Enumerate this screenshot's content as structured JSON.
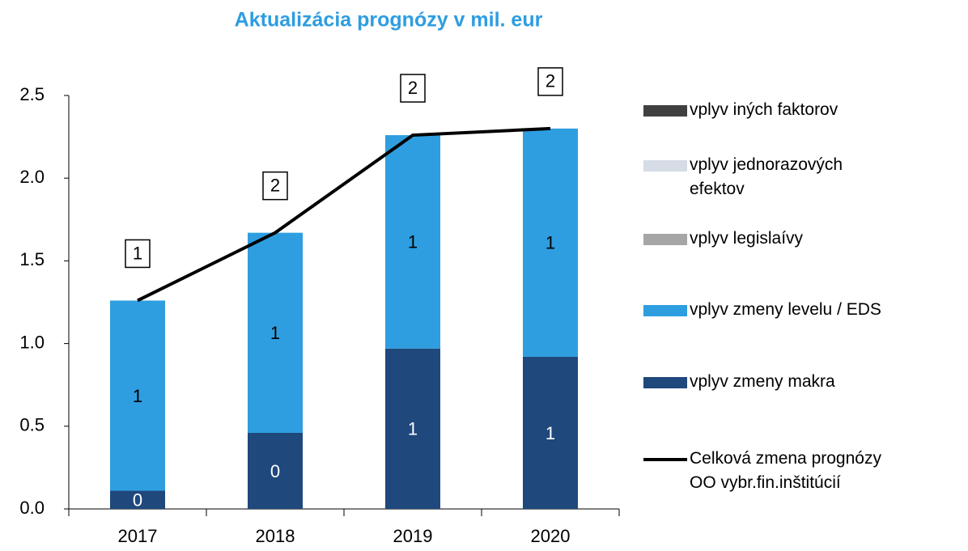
{
  "chart_data": {
    "type": "bar",
    "title": "Aktualizácia prognózy v mil. eur",
    "categories": [
      "2017",
      "2018",
      "2019",
      "2020"
    ],
    "series": [
      {
        "name": "vplyv iných faktorov",
        "color": "#404040",
        "values": [
          0,
          0,
          0,
          0
        ]
      },
      {
        "name": "vplyv jednorazových efektov",
        "color": "#d6dce5",
        "values": [
          0,
          0,
          0,
          0
        ]
      },
      {
        "name": "vplyv legislaívy",
        "color": "#a6a6a6",
        "values": [
          0,
          0,
          0,
          0
        ]
      },
      {
        "name": "vplyv zmeny levelu / EDS",
        "color": "#2e9ee0",
        "values": [
          1.15,
          1.21,
          1.29,
          1.38
        ],
        "value_labels": [
          "1",
          "1",
          "1",
          "1"
        ]
      },
      {
        "name": "vplyv zmeny makra",
        "color": "#1f487c",
        "values": [
          0.11,
          0.46,
          0.97,
          0.92
        ],
        "value_labels": [
          "0",
          "0",
          "1",
          "1"
        ]
      },
      {
        "name": "Celková zmena prognózy OO vybr.fin.inštitúcií",
        "type": "line",
        "color": "#000000",
        "values": [
          1.26,
          1.67,
          2.26,
          2.3
        ],
        "value_labels": [
          "1",
          "2",
          "2",
          "2"
        ]
      }
    ],
    "ylim": [
      0,
      2.5
    ],
    "yticks": [
      {
        "value": 0,
        "label": "0.0"
      },
      0.5,
      {
        "value": 1,
        "label": "1.0"
      },
      1.5,
      {
        "value": 2,
        "label": "2.0"
      },
      2.5
    ],
    "legend": "right"
  }
}
